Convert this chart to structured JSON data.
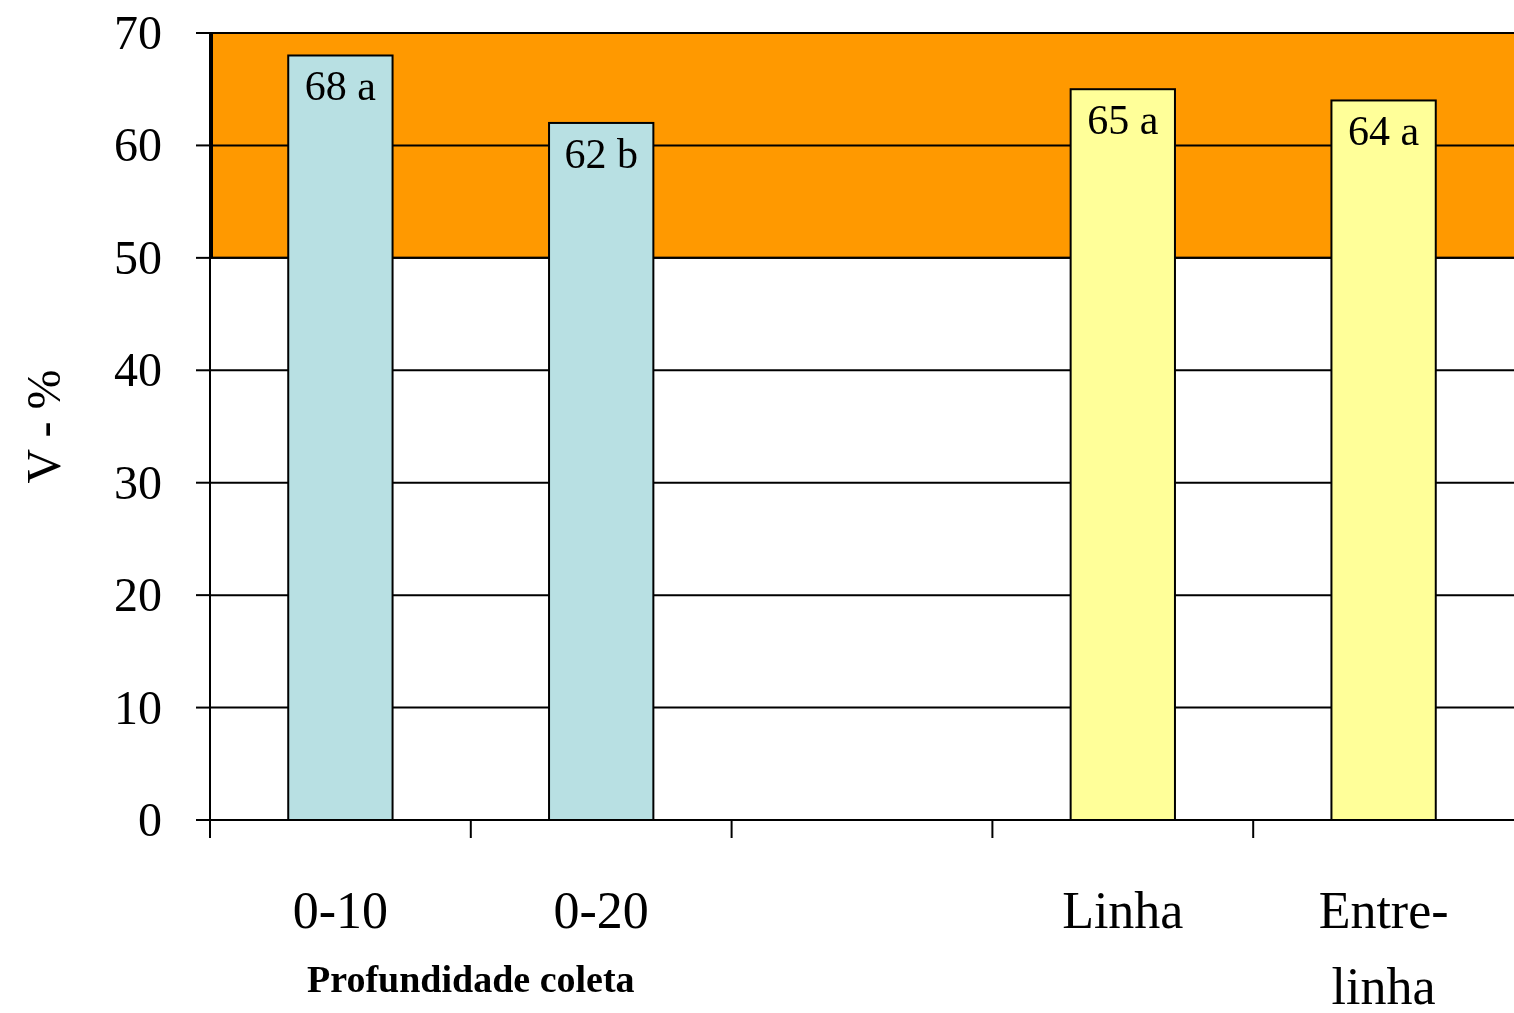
{
  "chart_data": {
    "type": "bar",
    "ylabel": "V - %",
    "xlabel": "Profundidade coleta",
    "categories": [
      "0-10",
      "0-20",
      null,
      "Linha",
      "Entre-\nlinha"
    ],
    "values": [
      68,
      62,
      null,
      65,
      64
    ],
    "colors": [
      "#b8e0e3",
      "#b8e0e3",
      null,
      "#ffff99",
      "#ffff99"
    ],
    "value_labels": [
      "68 a",
      "62 b",
      null,
      "65 a",
      "64 a"
    ],
    "ylim": [
      0,
      70
    ],
    "yticks": [
      0,
      10,
      20,
      30,
      40,
      50,
      60,
      70
    ],
    "grid": "y",
    "bands": [
      {
        "axis": "y",
        "from": 50,
        "to": 70,
        "color": "#ff9900"
      }
    ]
  }
}
